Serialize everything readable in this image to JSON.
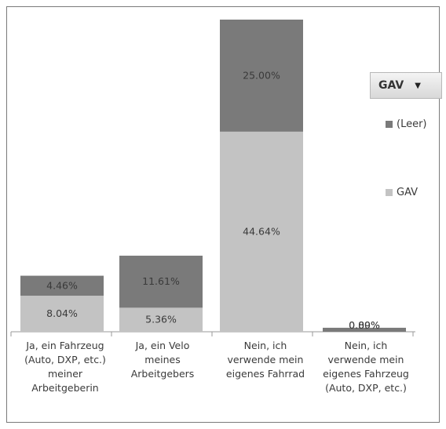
{
  "filter": {
    "label": "GAV"
  },
  "colors": {
    "leer": "#7a7a7a",
    "gav": "#c3c3c3",
    "text": "#3a3a3a"
  },
  "chart_data": {
    "type": "bar",
    "stacked": true,
    "categories": [
      "Ja, ein Fahrzeug (Auto, DXP, etc.) meiner Arbeitgeberin",
      "Ja, ein Velo meines Arbeitgebers",
      "Nein, ich verwende mein eigenes Fahrrad",
      "Nein, ich verwende mein eigenes Fahrzeug (Auto, DXP, etc.)"
    ],
    "series": [
      {
        "name": "GAV",
        "values": [
          8.04,
          5.36,
          44.64,
          0.0
        ],
        "labels": [
          "8.04%",
          "5.36%",
          "44.64%",
          "0.00%"
        ]
      },
      {
        "name": "(Leer)",
        "values": [
          4.46,
          11.61,
          25.0,
          0.89
        ],
        "labels": [
          "4.46%",
          "11.61%",
          "25.00%",
          "0.89%"
        ]
      }
    ],
    "ylim": [
      0,
      70
    ],
    "legend": {
      "position": "right"
    },
    "grid": false
  }
}
